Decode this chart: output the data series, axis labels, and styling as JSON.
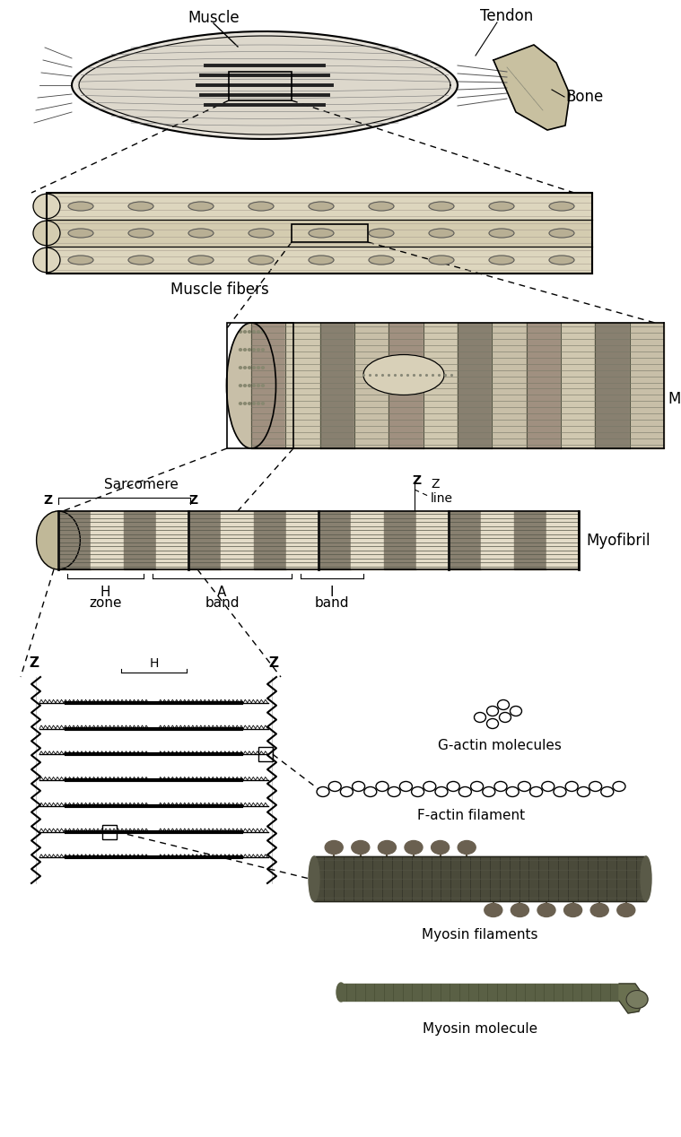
{
  "bg_color": "#ffffff",
  "line_color": "#000000",
  "labels": {
    "muscle": "Muscle",
    "tendon": "Tendon",
    "bone": "Bone",
    "muscle_fibers": "Muscle fibers",
    "muscle_fiber": "Muscle fiber",
    "myofibril": "Myofibril",
    "sarcomere": "Sarcomere",
    "z_line": "Z\nline",
    "h_zone": "H\nzone",
    "a_band": "A\nband",
    "i_band": "I\nband",
    "g_actin": "G-actin molecules",
    "f_actin": "F-actin filament",
    "myosin_filaments": "Myosin filaments",
    "myosin_molecule": "Myosin molecule"
  },
  "figsize": [
    7.59,
    12.68
  ],
  "dpi": 100
}
